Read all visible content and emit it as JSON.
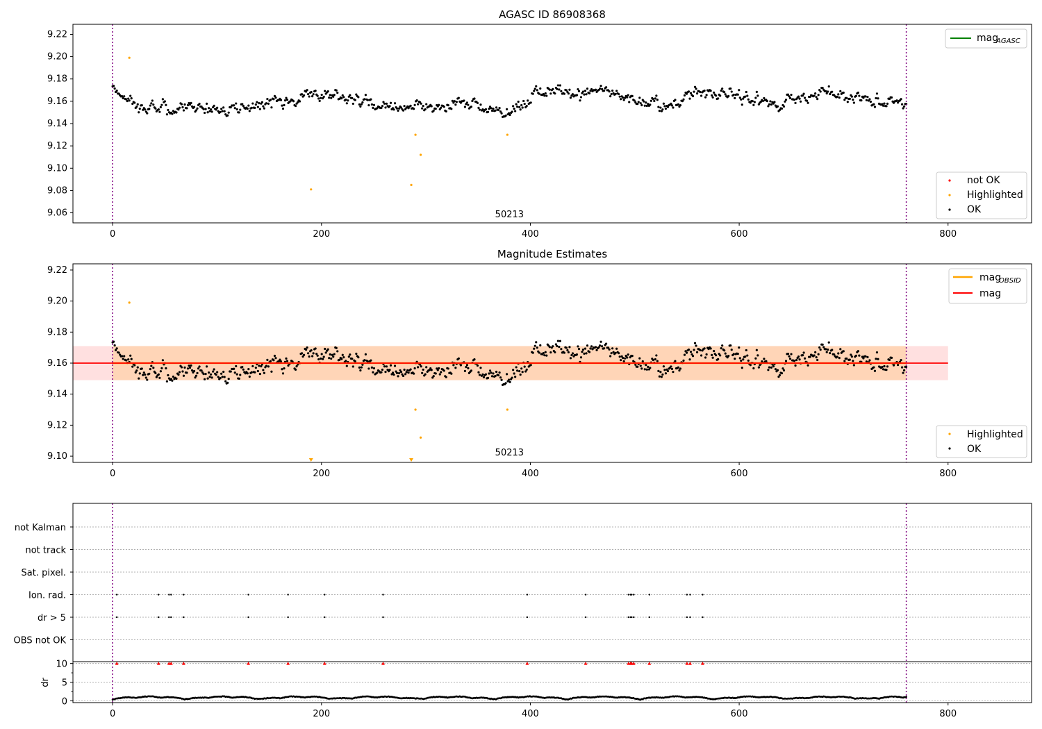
{
  "chart_data": [
    {
      "type": "scatter",
      "title": "AGASC ID 86908368",
      "xlim": [
        -38,
        880
      ],
      "ylim": [
        9.051,
        9.229
      ],
      "xticks": [
        0,
        200,
        400,
        600,
        800
      ],
      "yticks": [
        9.06,
        9.08,
        9.1,
        9.12,
        9.14,
        9.16,
        9.18,
        9.2,
        9.22
      ],
      "obsid_boundaries": [
        0,
        760
      ],
      "annotations": [
        {
          "text": "50213",
          "x": 380,
          "y": 9.056
        }
      ],
      "legend_lines": [
        {
          "name": "mag",
          "subscript": "AGASC",
          "color": "#008000",
          "loc": "upper right"
        }
      ],
      "legend_points": [
        {
          "name": "not OK",
          "color": "#ff0000"
        },
        {
          "name": "Highlighted",
          "color": "#ffa500"
        },
        {
          "name": "OK",
          "color": "#000000"
        }
      ],
      "highlighted": [
        {
          "x": 16,
          "y": 9.199
        },
        {
          "x": 190,
          "y": 9.081
        },
        {
          "x": 286,
          "y": 9.085
        },
        {
          "x": 290,
          "y": 9.13
        },
        {
          "x": 295,
          "y": 9.112
        },
        {
          "x": 378,
          "y": 9.13
        }
      ],
      "ok_series": {
        "n": 760,
        "x_start": 0,
        "x_end": 760,
        "baseline": 9.16,
        "mean_mag": 9.16,
        "std": 0.011
      }
    },
    {
      "type": "scatter",
      "title": "Magnitude Estimates",
      "xlim": [
        -38,
        880
      ],
      "ylim": [
        9.096,
        9.224
      ],
      "xticks": [
        0,
        200,
        400,
        600,
        800
      ],
      "yticks": [
        9.1,
        9.12,
        9.14,
        9.16,
        9.18,
        9.2,
        9.22
      ],
      "obsid_boundaries": [
        0,
        760
      ],
      "annotations": [
        {
          "text": "50213",
          "x": 380,
          "y": 9.1005
        }
      ],
      "mag_line": {
        "name": "mag",
        "value": 9.16,
        "color": "#ff0000",
        "band": [
          9.149,
          9.171
        ],
        "band_x": [
          -38,
          800
        ]
      },
      "mag_obsid": {
        "name": "mag",
        "subscript": "OBSID",
        "value": 9.16,
        "color": "#ffa500",
        "band": [
          9.149,
          9.171
        ],
        "band_x": [
          0,
          760
        ]
      },
      "legend_points": [
        {
          "name": "Highlighted",
          "color": "#ffa500"
        },
        {
          "name": "OK",
          "color": "#000000"
        }
      ],
      "highlighted": [
        {
          "x": 16,
          "y": 9.199
        },
        {
          "x": 290,
          "y": 9.13
        },
        {
          "x": 295,
          "y": 9.112
        },
        {
          "x": 378,
          "y": 9.13
        }
      ],
      "clipped_below": [
        190,
        286
      ]
    },
    {
      "type": "scatter",
      "title": "",
      "xlim": [
        -38,
        880
      ],
      "xticks": [
        0,
        200,
        400,
        600,
        800
      ],
      "flag_rows": [
        "not Kalman",
        "not track",
        "Sat. pixel.",
        "Ion. rad.",
        "dr > 5",
        "OBS not OK"
      ],
      "flag_events": {
        "Ion. rad.": [
          4,
          44,
          54,
          56,
          68,
          130,
          168,
          203,
          259,
          397,
          453,
          494,
          496,
          497,
          499,
          514,
          550,
          553,
          565
        ],
        "dr > 5": [
          4,
          44,
          54,
          56,
          68,
          130,
          168,
          203,
          259,
          397,
          453,
          494,
          496,
          497,
          499,
          514,
          550,
          553,
          565
        ]
      },
      "dr_panel": {
        "ylabel": "dr",
        "ylim": [
          -0.5,
          10.5
        ],
        "yticks": [
          0,
          5,
          10
        ],
        "clip_value": 10,
        "clipped_x": [
          4,
          44,
          54,
          56,
          68,
          130,
          168,
          203,
          259,
          397,
          453,
          494,
          496,
          497,
          499,
          514,
          550,
          553,
          565
        ]
      },
      "obsid_boundaries": [
        0,
        760
      ]
    }
  ]
}
